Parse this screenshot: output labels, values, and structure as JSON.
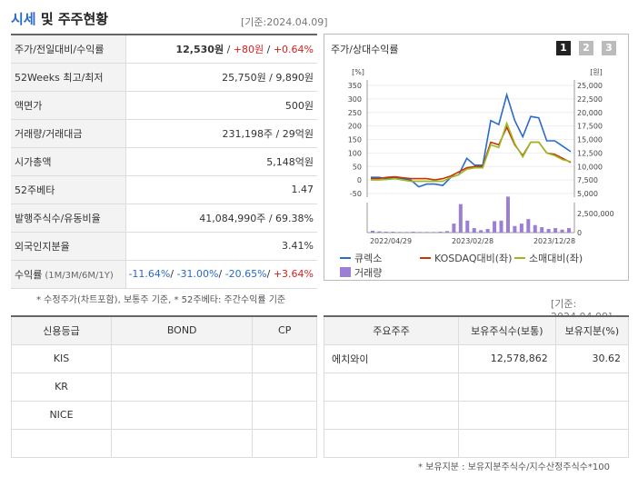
{
  "header": {
    "title_accent": "시세",
    "title_rest": " 및 주주현황",
    "basedate": "[기준:2024.04.09]"
  },
  "price_rows": [
    {
      "label": "주가/전일대비/수익률",
      "value_parts": [
        {
          "t": "12,530원",
          "c": "bold"
        },
        {
          "t": " / ",
          "c": ""
        },
        {
          "t": "+80원",
          "c": "red"
        },
        {
          "t": " / ",
          "c": ""
        },
        {
          "t": "+0.64%",
          "c": "red"
        }
      ]
    },
    {
      "label": "52Weeks 최고/최저",
      "value_parts": [
        {
          "t": "25,750원 / 9,890원",
          "c": ""
        }
      ]
    },
    {
      "label": "액면가",
      "value_parts": [
        {
          "t": "500원",
          "c": ""
        }
      ]
    },
    {
      "label": "거래량/거래대금",
      "value_parts": [
        {
          "t": "231,198주 / 29억원",
          "c": ""
        }
      ]
    },
    {
      "label": "시가총액",
      "value_parts": [
        {
          "t": "5,148억원",
          "c": ""
        }
      ]
    },
    {
      "label": "52주베타",
      "value_parts": [
        {
          "t": "1.47",
          "c": ""
        }
      ]
    },
    {
      "label": "발행주식수/유동비율",
      "value_parts": [
        {
          "t": "41,084,990주 / 69.38%",
          "c": ""
        }
      ]
    },
    {
      "label": "외국인지분율",
      "value_parts": [
        {
          "t": "3.41%",
          "c": ""
        }
      ]
    },
    {
      "label": "수익률",
      "label_sub": "(1M/3M/6M/1Y)",
      "value_parts": [
        {
          "t": "-11.64%",
          "c": "blue"
        },
        {
          "t": "/ ",
          "c": ""
        },
        {
          "t": "-31.00%",
          "c": "blue"
        },
        {
          "t": "/ ",
          "c": ""
        },
        {
          "t": "-20.65%",
          "c": "blue"
        },
        {
          "t": "/ ",
          "c": ""
        },
        {
          "t": "+3.64%",
          "c": "red"
        }
      ]
    }
  ],
  "note_price": "* 수정주가(차트포함), 보통주 기준, * 52주베타: 주간수익률 기준",
  "chart_panel": {
    "title": "주가/상대수익률",
    "pages": [
      "1",
      "2",
      "3"
    ]
  },
  "chart_data": {
    "type": "line",
    "x_ticks": [
      "2022/04/29",
      "2023/02/28",
      "2023/12/28"
    ],
    "left_unit": "[%]",
    "right_unit": "[원]",
    "left_ticks": [
      "350",
      "300",
      "250",
      "200",
      "150",
      "100",
      "50",
      "0",
      "-50"
    ],
    "right_ticks": [
      "25,000",
      "22,500",
      "20,000",
      "17,500",
      "15,000",
      "12,500",
      "10,000",
      "7,500",
      "5,000"
    ],
    "volume_tick": "2,500,000",
    "volume_zero": "0",
    "left_range": [
      -50,
      350
    ],
    "series": [
      {
        "name": "큐렉소",
        "color": "#2a6ac8",
        "values": [
          10,
          10,
          5,
          10,
          5,
          0,
          -25,
          -15,
          -15,
          -20,
          10,
          20,
          80,
          55,
          55,
          220,
          205,
          315,
          220,
          160,
          235,
          230,
          145,
          145,
          125,
          105
        ]
      },
      {
        "name": "KOSDAQ대비(좌)",
        "color": "#cc3300",
        "values": [
          5,
          5,
          10,
          12,
          8,
          5,
          5,
          5,
          0,
          5,
          15,
          30,
          45,
          50,
          50,
          140,
          130,
          195,
          130,
          90,
          140,
          140,
          100,
          95,
          80,
          65
        ]
      },
      {
        "name": "소매대비(좌)",
        "color": "#99bb22",
        "values": [
          0,
          0,
          2,
          5,
          0,
          -5,
          -5,
          -5,
          -5,
          -5,
          10,
          20,
          40,
          45,
          45,
          130,
          120,
          210,
          135,
          85,
          140,
          140,
          100,
          90,
          75,
          68
        ]
      }
    ],
    "volume": {
      "name": "거래량",
      "color": "#9b7fd4",
      "values": [
        0.06,
        0.04,
        0.03,
        0.03,
        0.02,
        0.02,
        0.03,
        0.02,
        0.02,
        0.02,
        0.03,
        0.05,
        0.3,
        0.95,
        0.4,
        0.15,
        0.08,
        0.12,
        0.38,
        0.4,
        1.2,
        0.22,
        0.3,
        0.45,
        0.25,
        0.18,
        0.12,
        0.15,
        0.1,
        0.15
      ]
    }
  },
  "credit": {
    "headers": [
      "신용등급",
      "BOND",
      "CP"
    ],
    "rows": [
      [
        "KIS",
        "",
        ""
      ],
      [
        "KR",
        "",
        ""
      ],
      [
        "NICE",
        "",
        ""
      ],
      [
        "",
        "",
        ""
      ]
    ]
  },
  "shareholders": {
    "basedate": "[기준: 2024.04.09]",
    "headers": [
      "주요주주",
      "보유주식수(보통)",
      "보유지분(%)"
    ],
    "rows": [
      [
        "에치와이",
        "12,578,862",
        "30.62"
      ],
      [
        "",
        "",
        ""
      ],
      [
        "",
        "",
        ""
      ],
      [
        "",
        "",
        ""
      ]
    ]
  },
  "note_share": "* 보유지분 : 보유지분주식수/지수산정주식수*100"
}
